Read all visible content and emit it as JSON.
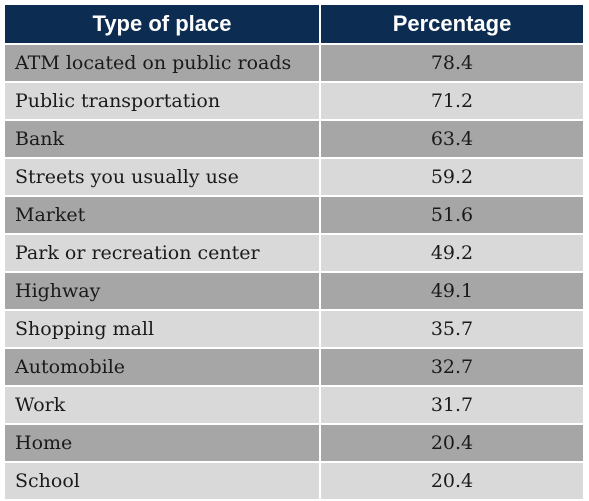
{
  "colors": {
    "header_bg": "#0c2c51",
    "row_dark": "#a6a6a6",
    "row_light": "#d9d9d9",
    "text": "#1a1a1a"
  },
  "chart_data": {
    "type": "table",
    "columns": [
      "Type of place",
      "Percentage"
    ],
    "rows": [
      {
        "place": "ATM located on public roads",
        "percentage": "78.4"
      },
      {
        "place": "Public transportation",
        "percentage": "71.2"
      },
      {
        "place": "Bank",
        "percentage": "63.4"
      },
      {
        "place": "Streets you usually use",
        "percentage": "59.2"
      },
      {
        "place": "Market",
        "percentage": "51.6"
      },
      {
        "place": "Park or recreation center",
        "percentage": "49.2"
      },
      {
        "place": "Highway",
        "percentage": "49.1"
      },
      {
        "place": "Shopping mall",
        "percentage": "35.7"
      },
      {
        "place": "Automobile",
        "percentage": "32.7"
      },
      {
        "place": "Work",
        "percentage": "31.7"
      },
      {
        "place": "Home",
        "percentage": "20.4"
      },
      {
        "place": "School",
        "percentage": "20.4"
      }
    ]
  }
}
